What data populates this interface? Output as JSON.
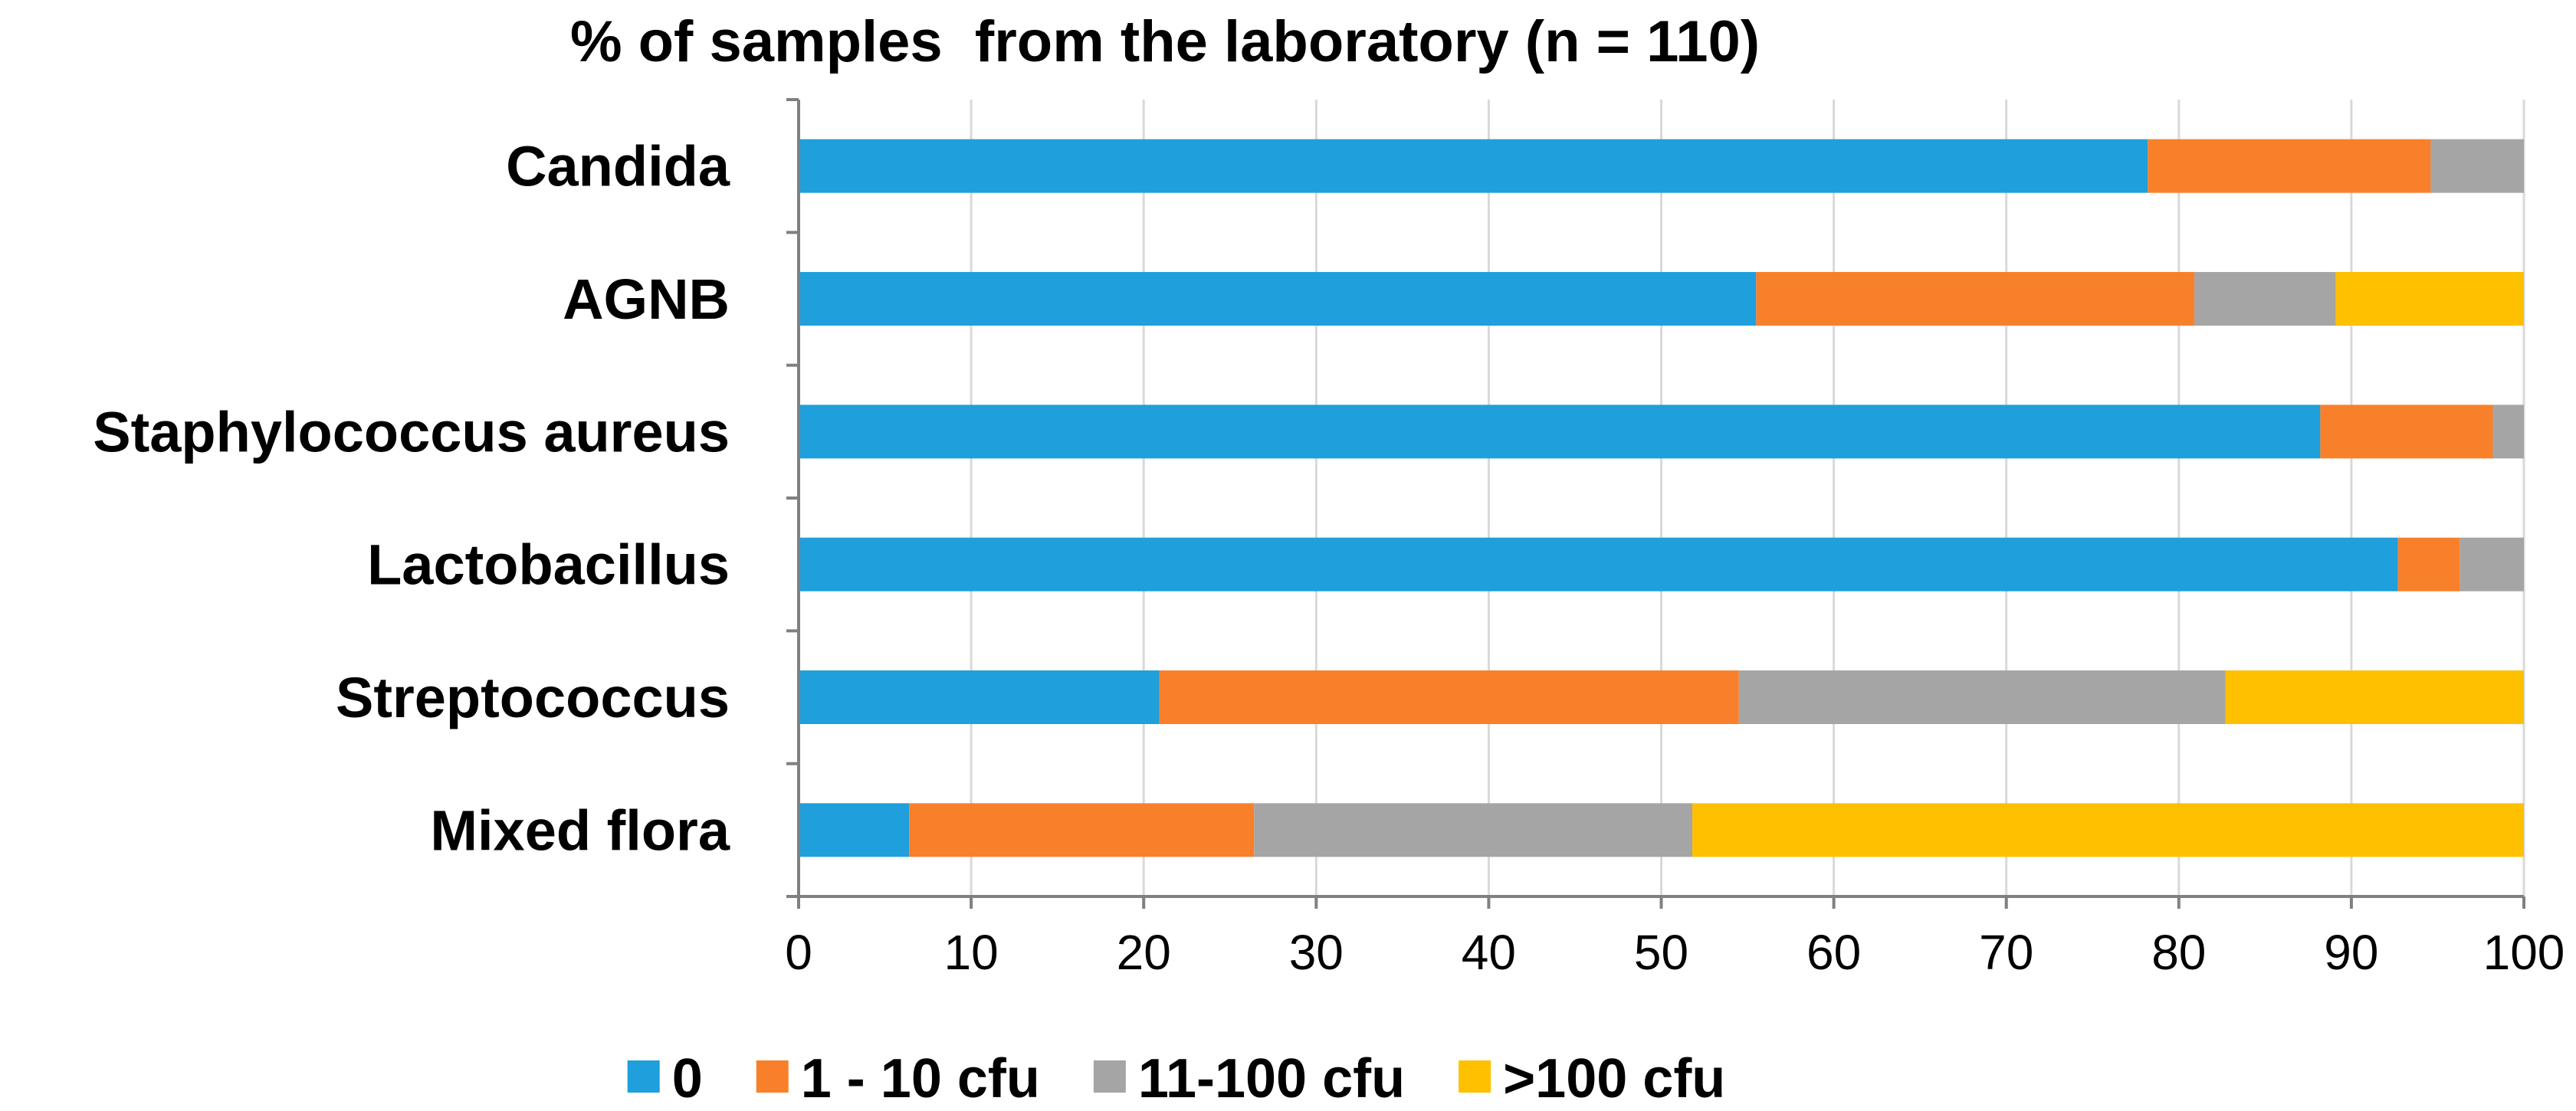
{
  "chart_data": {
    "type": "bar",
    "orientation": "horizontal",
    "stacked": true,
    "title": "% of samples  from the laboratory (n = 110)",
    "xlabel": "",
    "ylabel": "",
    "xlim": [
      0,
      100
    ],
    "x_ticks": [
      0,
      10,
      20,
      30,
      40,
      50,
      60,
      70,
      80,
      90,
      100
    ],
    "grid": true,
    "legend_position": "bottom",
    "categories": [
      "Candida",
      "AGNB",
      "Staphylococcus aureus",
      "Lactobacillus",
      "Streptococcus",
      "Mixed flora"
    ],
    "series": [
      {
        "name": "0",
        "color": "#1f9fdb",
        "values": [
          78.2,
          55.5,
          88.2,
          92.7,
          20.9,
          6.4
        ]
      },
      {
        "name": "1 - 10 cfu",
        "color": "#f9802a",
        "values": [
          16.4,
          25.4,
          10.0,
          3.6,
          33.6,
          20.0
        ]
      },
      {
        "name": "11-100 cfu",
        "color": "#a5a5a5",
        "values": [
          5.4,
          8.2,
          1.8,
          3.7,
          28.2,
          25.4
        ]
      },
      {
        "name": ">100 cfu",
        "color": "#ffc000",
        "values": [
          0,
          10.9,
          0,
          0,
          17.3,
          48.2
        ]
      }
    ]
  }
}
